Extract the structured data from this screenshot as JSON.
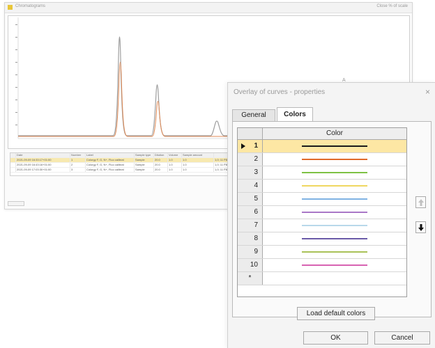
{
  "background_window": {
    "title": "Chromatograms",
    "toolbar_right": "Close   % of scale",
    "table": {
      "headers": [
        "",
        "Date",
        "Number",
        "Label",
        "Sample type",
        "Dilution",
        "Volume",
        "Sample amount",
        ""
      ],
      "rows": [
        [
          "",
          "2021-09-09 16:33:17+01:00",
          "1",
          "Colorgy F, G, N+, Fluo calibrat",
          "Sample",
          "20.0",
          "1.0",
          "1.0",
          "1,0; 11 P8 4"
        ],
        [
          "",
          "2021-09-09 16:43:16+01:00",
          "2",
          "Colorgy F, G, N+, Fluo calibrat",
          "Sample",
          "20.0",
          "1.0",
          "1.0",
          "1,0; 11 P8 4"
        ],
        [
          "",
          "2021-09-09 17:03:30+01:00",
          "3",
          "Colorgy F, G, N+, Fluo calibrat",
          "Sample",
          "20.0",
          "1.0",
          "1.0",
          "1,0; 11 P8 4"
        ]
      ]
    }
  },
  "annotation_letter": "A",
  "dialog": {
    "title": "Overlay of curves - properties",
    "close_glyph": "×",
    "tabs": [
      {
        "label": "General",
        "active": false
      },
      {
        "label": "Colors",
        "active": true
      }
    ],
    "table": {
      "column_header": "Color",
      "rows": [
        {
          "label": "1",
          "color": "#1a1a1a",
          "selected": true
        },
        {
          "label": "2",
          "color": "#e06a2c",
          "selected": false
        },
        {
          "label": "3",
          "color": "#7ec244",
          "selected": false
        },
        {
          "label": "4",
          "color": "#efd760",
          "selected": false
        },
        {
          "label": "5",
          "color": "#7fb3e3",
          "selected": false
        },
        {
          "label": "6",
          "color": "#a977c7",
          "selected": false
        },
        {
          "label": "7",
          "color": "#b8d8ea",
          "selected": false
        },
        {
          "label": "8",
          "color": "#6a5aa8",
          "selected": false
        },
        {
          "label": "9",
          "color": "#a9c257",
          "selected": false
        },
        {
          "label": "10",
          "color": "#d763b2",
          "selected": false
        }
      ],
      "new_row_label": "*"
    },
    "side_buttons": {
      "up_icon": "up-arrow-icon",
      "down_icon": "down-arrow-icon"
    },
    "buttons": {
      "load_default": "Load default colors",
      "ok": "OK",
      "cancel": "Cancel"
    }
  }
}
